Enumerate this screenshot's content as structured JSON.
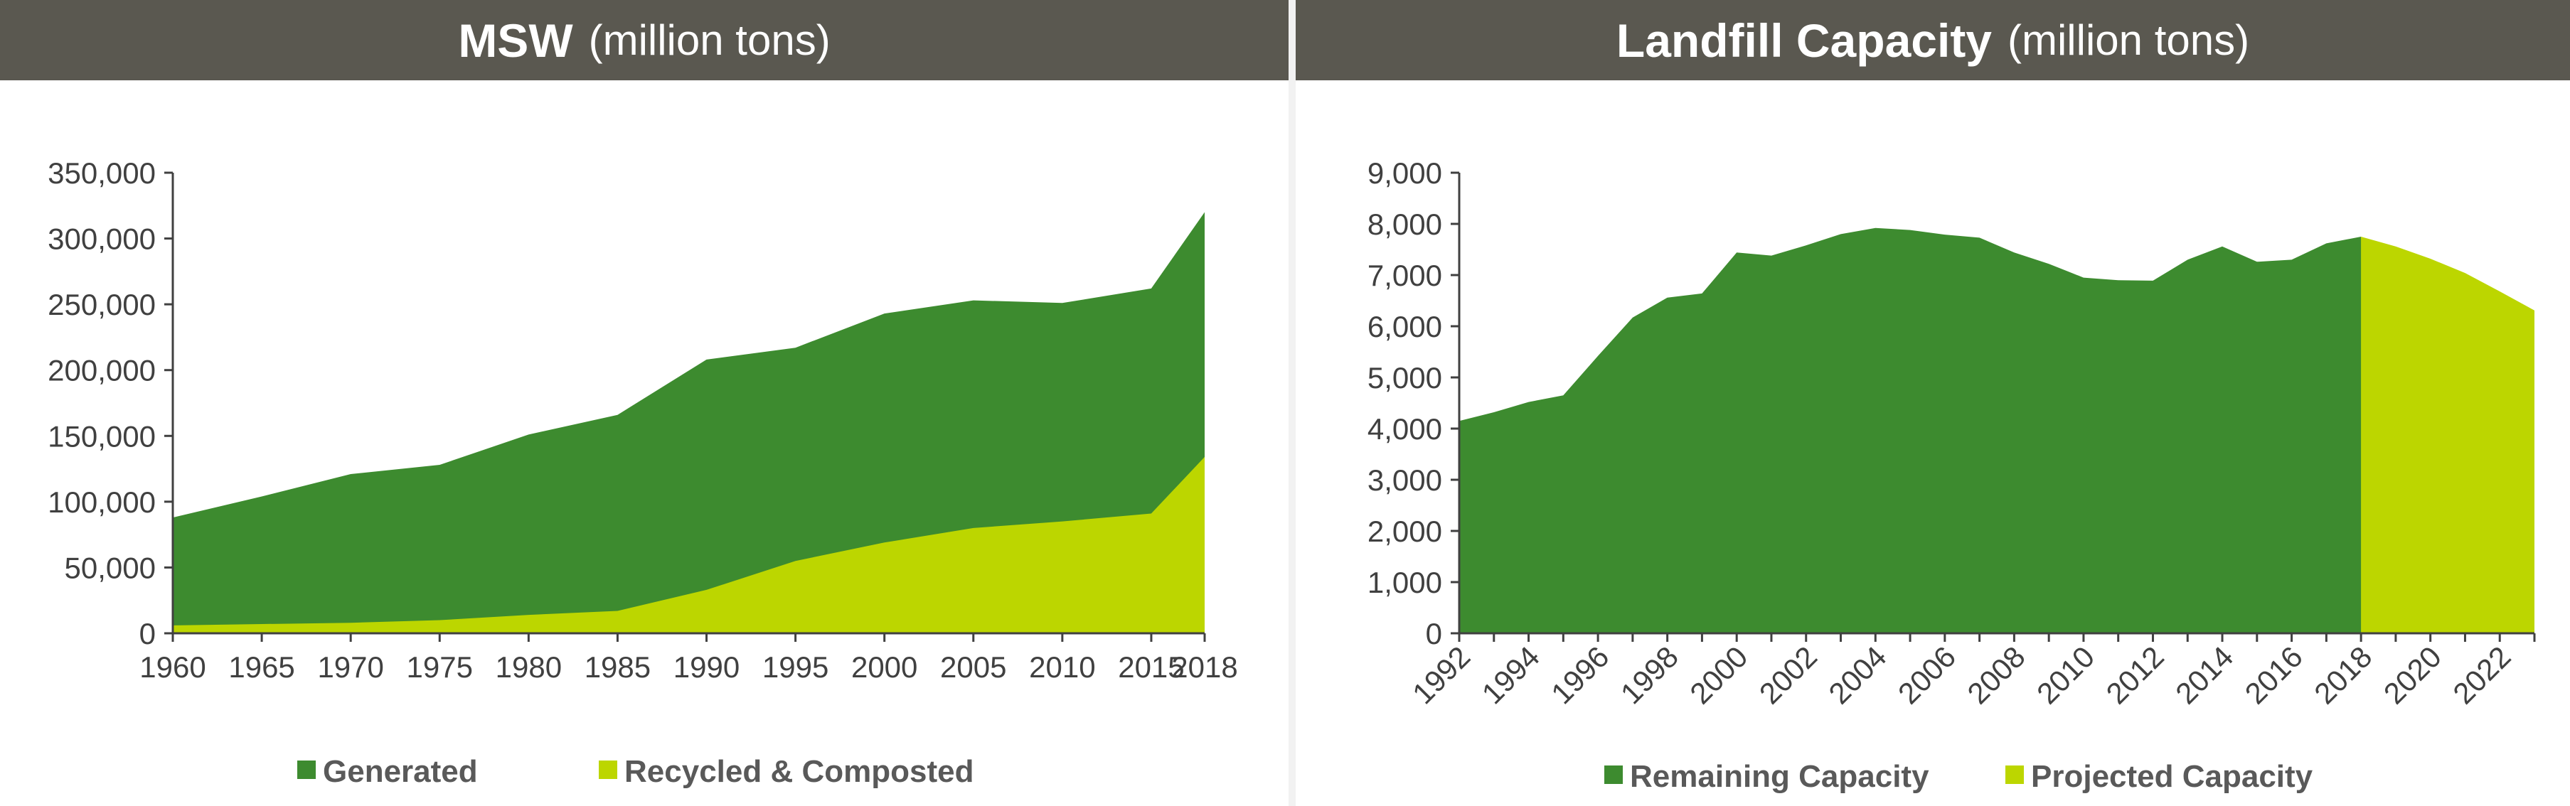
{
  "colors": {
    "dark_green": "#3d8b2f",
    "lime": "#bcd600",
    "header_bg": "#5a5850",
    "axis": "#404040"
  },
  "chart_data": [
    {
      "type": "area",
      "title": "MSW",
      "title_unit": "(million tons)",
      "x": [
        1960,
        1965,
        1970,
        1975,
        1980,
        1985,
        1990,
        1995,
        2000,
        2005,
        2010,
        2015,
        2018
      ],
      "x_tick_labels": [
        "1960",
        "1965",
        "1970",
        "1975",
        "1980",
        "1985",
        "1990",
        "1995",
        "2000",
        "2005",
        "2010",
        "2015",
        "2018"
      ],
      "ylim": [
        0,
        350000
      ],
      "y_ticks": [
        0,
        50000,
        100000,
        150000,
        200000,
        250000,
        300000,
        350000
      ],
      "y_tick_labels": [
        "0",
        "50,000",
        "100,000",
        "150,000",
        "200,000",
        "250,000",
        "300,000",
        "350,000"
      ],
      "legend_position": "bottom",
      "series": [
        {
          "name": "Generated",
          "color": "#3d8b2f",
          "values": [
            88000,
            104000,
            121000,
            128000,
            151000,
            166000,
            208000,
            217000,
            243000,
            253000,
            251000,
            262000,
            320000
          ]
        },
        {
          "name": "Recycled & Composted",
          "color": "#bcd600",
          "values": [
            6000,
            7000,
            8000,
            10000,
            14000,
            17000,
            33000,
            55000,
            69000,
            80000,
            85000,
            91000,
            134000
          ]
        }
      ]
    },
    {
      "type": "area",
      "title": "Landfill Capacity",
      "title_unit": "(million tons)",
      "x": [
        1992,
        1993,
        1994,
        1995,
        1996,
        1997,
        1998,
        1999,
        2000,
        2001,
        2002,
        2003,
        2004,
        2005,
        2006,
        2007,
        2008,
        2009,
        2010,
        2011,
        2012,
        2013,
        2014,
        2015,
        2016,
        2017,
        2018,
        2019,
        2020,
        2021,
        2022,
        2023
      ],
      "xlim": [
        1992,
        2023
      ],
      "x_tick_labels": [
        "1992",
        "1994",
        "1996",
        "1998",
        "2000",
        "2002",
        "2004",
        "2006",
        "2008",
        "2010",
        "2012",
        "2014",
        "2016",
        "2018",
        "2020",
        "2022"
      ],
      "x_ticks": [
        1992,
        1994,
        1996,
        1998,
        2000,
        2002,
        2004,
        2006,
        2008,
        2010,
        2012,
        2014,
        2016,
        2018,
        2020,
        2022
      ],
      "ylim": [
        0,
        9000
      ],
      "y_ticks": [
        0,
        1000,
        2000,
        3000,
        4000,
        5000,
        6000,
        7000,
        8000,
        9000
      ],
      "y_tick_labels": [
        "0",
        "1,000",
        "2,000",
        "3,000",
        "4,000",
        "5,000",
        "6,000",
        "7,000",
        "8,000",
        "9,000"
      ],
      "legend_position": "bottom",
      "series": [
        {
          "name": "Remaining Capacity",
          "color": "#3d8b2f",
          "x": [
            1992,
            1993,
            1994,
            1995,
            1996,
            1997,
            1998,
            1999,
            2000,
            2001,
            2002,
            2003,
            2004,
            2005,
            2006,
            2007,
            2008,
            2009,
            2010,
            2011,
            2012,
            2013,
            2014,
            2015,
            2016,
            2017,
            2018,
            2019
          ],
          "values": [
            4150,
            4320,
            4520,
            4650,
            5420,
            6170,
            6560,
            6640,
            7440,
            7380,
            7580,
            7800,
            7920,
            7880,
            7790,
            7730,
            7440,
            7220,
            6950,
            6900,
            6890,
            7300,
            7560,
            7260,
            7300,
            7620,
            7750,
            0
          ]
        },
        {
          "name": "Projected Capacity",
          "color": "#bcd600",
          "x": [
            2018,
            2019,
            2020,
            2021,
            2022,
            2023
          ],
          "values": [
            7750,
            7560,
            7320,
            7040,
            6680,
            6310
          ]
        }
      ]
    }
  ]
}
